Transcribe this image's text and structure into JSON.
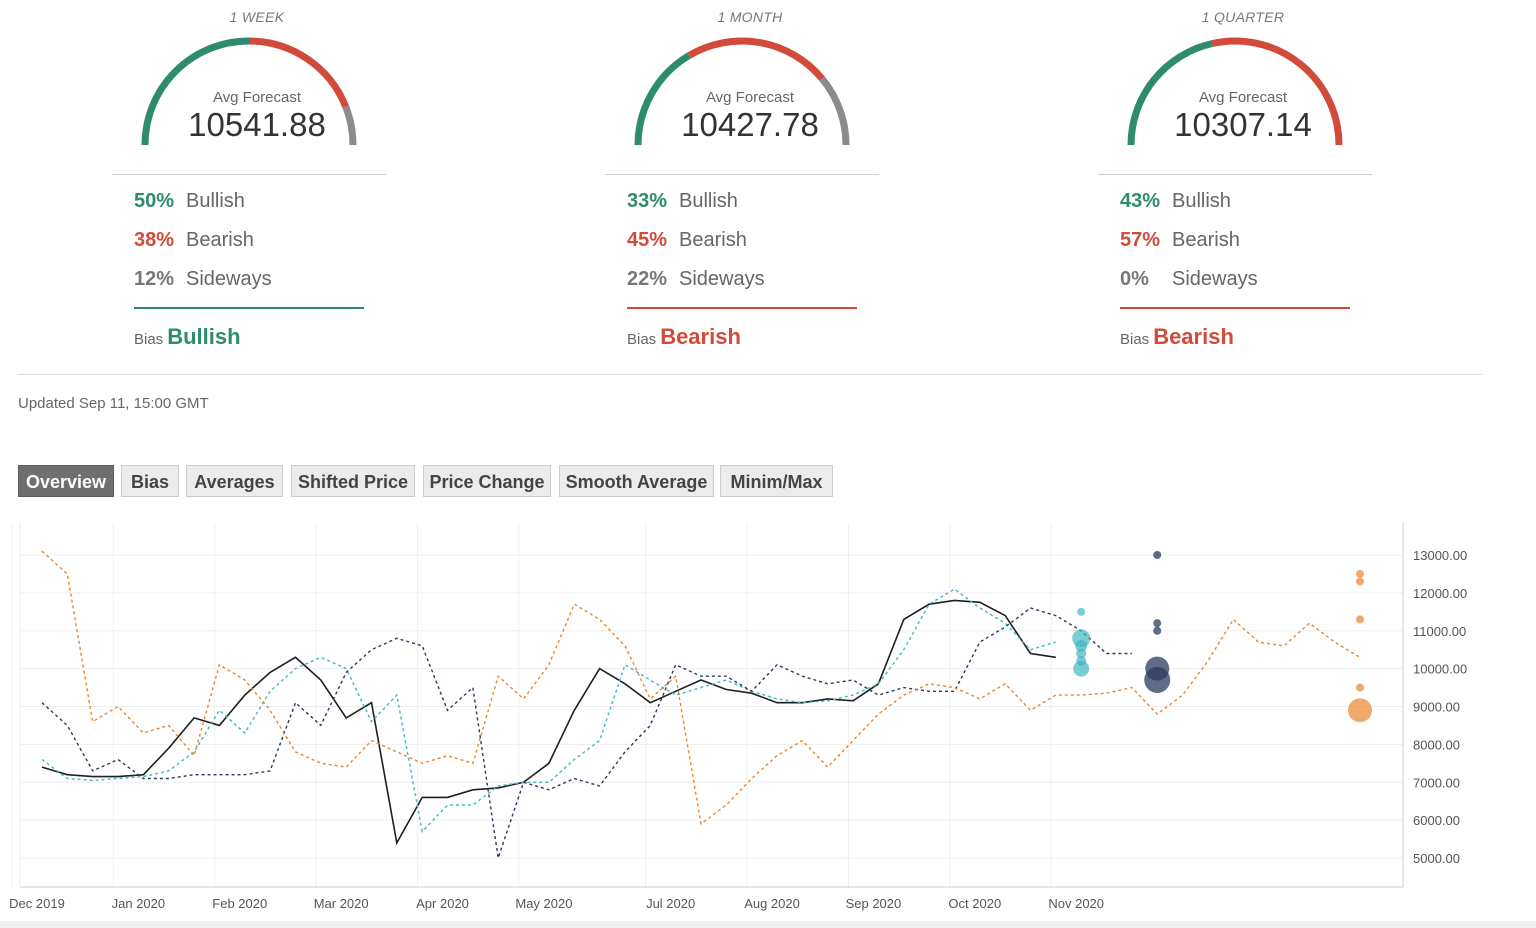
{
  "gauges": [
    {
      "period": "1 WEEK",
      "avg_label": "Avg Forecast",
      "avg_value": "10541.88",
      "bullish_pct": "50%",
      "bullish_label": "Bullish",
      "bearish_pct": "38%",
      "bearish_label": "Bearish",
      "sideways_pct": "12%",
      "sideways_label": "Sideways",
      "bias_label": "Bias",
      "bias_value": "Bullish",
      "shares": [
        0.5,
        0.38,
        0.12
      ],
      "bias_color": "#2e8b6e"
    },
    {
      "period": "1 MONTH",
      "avg_label": "Avg Forecast",
      "avg_value": "10427.78",
      "bullish_pct": "33%",
      "bullish_label": "Bullish",
      "bearish_pct": "45%",
      "bearish_label": "Bearish",
      "sideways_pct": "22%",
      "sideways_label": "Sideways",
      "bias_label": "Bias",
      "bias_value": "Bearish",
      "shares": [
        0.33,
        0.45,
        0.22
      ],
      "bias_color": "#d24b3a"
    },
    {
      "period": "1 QUARTER",
      "avg_label": "Avg Forecast",
      "avg_value": "10307.14",
      "bullish_pct": "43%",
      "bullish_label": "Bullish",
      "bearish_pct": "57%",
      "bearish_label": "Bearish",
      "sideways_pct": "0%",
      "sideways_label": "Sideways",
      "bias_label": "Bias",
      "bias_value": "Bearish",
      "shares": [
        0.43,
        0.57,
        0.0
      ],
      "bias_color": "#d24b3a"
    }
  ],
  "colors": {
    "bullish": "#2e8b6e",
    "bearish": "#d24b3a",
    "sideways": "#8a8a8f",
    "price": "#1f1f1f",
    "week": "#40b8c2",
    "month": "#2b3a5e",
    "quarter": "#e8862e"
  },
  "updated": "Updated Sep 11, 15:00 GMT",
  "tabs": [
    {
      "label": "Overview",
      "active": true
    },
    {
      "label": "Bias",
      "active": false
    },
    {
      "label": "Averages",
      "active": false
    },
    {
      "label": "Shifted Price",
      "active": false
    },
    {
      "label": "Price Change",
      "active": false
    },
    {
      "label": "Smooth Average",
      "active": false
    },
    {
      "label": "Minim/Max",
      "active": false
    }
  ],
  "chart_data": {
    "type": "line",
    "x_tick_labels": [
      "Dec 2019",
      "Jan 2020",
      "Feb 2020",
      "Mar 2020",
      "Apr 2020",
      "May 2020",
      "Jul 2020",
      "Aug 2020",
      "Sep 2020",
      "Oct 2020",
      "Nov 2020"
    ],
    "x_tick_weeks": [
      1,
      5,
      9,
      13,
      17,
      21,
      26,
      30,
      34,
      38,
      42
    ],
    "y_tick_labels": [
      "13000.00",
      "12000.00",
      "11000.00",
      "10000.00",
      "9000.00",
      "8000.00",
      "7000.00",
      "6000.00",
      "5000.00"
    ],
    "ylim": [
      4500,
      13300
    ],
    "grid": true,
    "series": [
      {
        "key": "price",
        "style": "solid",
        "points": [
          [
            1,
            7400
          ],
          [
            2,
            7200
          ],
          [
            3,
            7150
          ],
          [
            4,
            7150
          ],
          [
            5,
            7200
          ],
          [
            6,
            7900
          ],
          [
            7,
            8700
          ],
          [
            8,
            8500
          ],
          [
            9,
            9300
          ],
          [
            10,
            9900
          ],
          [
            11,
            10300
          ],
          [
            12,
            9700
          ],
          [
            13,
            8700
          ],
          [
            14,
            9100
          ],
          [
            15,
            5400
          ],
          [
            16,
            6600
          ],
          [
            17,
            6600
          ],
          [
            18,
            6800
          ],
          [
            19,
            6850
          ],
          [
            20,
            7000
          ],
          [
            21,
            7500
          ],
          [
            22,
            8900
          ],
          [
            23,
            10000
          ],
          [
            24,
            9600
          ],
          [
            25,
            9100
          ],
          [
            26,
            9400
          ],
          [
            27,
            9700
          ],
          [
            28,
            9450
          ],
          [
            29,
            9350
          ],
          [
            30,
            9100
          ],
          [
            31,
            9100
          ],
          [
            32,
            9200
          ],
          [
            33,
            9150
          ],
          [
            34,
            9600
          ],
          [
            35,
            11300
          ],
          [
            36,
            11700
          ],
          [
            37,
            11800
          ],
          [
            38,
            11750
          ],
          [
            39,
            11400
          ],
          [
            40,
            10400
          ],
          [
            41,
            10300
          ]
        ]
      },
      {
        "key": "week",
        "style": "dashed",
        "points": [
          [
            1,
            7600
          ],
          [
            2,
            7100
          ],
          [
            3,
            7050
          ],
          [
            4,
            7100
          ],
          [
            5,
            7150
          ],
          [
            6,
            7300
          ],
          [
            7,
            7800
          ],
          [
            8,
            8900
          ],
          [
            9,
            8300
          ],
          [
            10,
            9400
          ],
          [
            11,
            10000
          ],
          [
            12,
            10300
          ],
          [
            13,
            10000
          ],
          [
            14,
            8600
          ],
          [
            15,
            9300
          ],
          [
            16,
            5700
          ],
          [
            17,
            6400
          ],
          [
            18,
            6400
          ],
          [
            19,
            6900
          ],
          [
            20,
            7000
          ],
          [
            21,
            7000
          ],
          [
            22,
            7600
          ],
          [
            23,
            8100
          ],
          [
            24,
            10100
          ],
          [
            25,
            9700
          ],
          [
            26,
            9300
          ],
          [
            27,
            9500
          ],
          [
            28,
            9700
          ],
          [
            29,
            9400
          ],
          [
            30,
            9200
          ],
          [
            31,
            9100
          ],
          [
            32,
            9150
          ],
          [
            33,
            9300
          ],
          [
            34,
            9600
          ],
          [
            35,
            10500
          ],
          [
            36,
            11700
          ],
          [
            37,
            12100
          ],
          [
            38,
            11600
          ],
          [
            39,
            11200
          ],
          [
            40,
            10500
          ],
          [
            41,
            10700
          ]
        ]
      },
      {
        "key": "month",
        "style": "dashed",
        "points": [
          [
            1,
            9100
          ],
          [
            2,
            8500
          ],
          [
            3,
            7300
          ],
          [
            4,
            7600
          ],
          [
            5,
            7100
          ],
          [
            6,
            7100
          ],
          [
            7,
            7200
          ],
          [
            8,
            7200
          ],
          [
            9,
            7200
          ],
          [
            10,
            7300
          ],
          [
            11,
            9100
          ],
          [
            12,
            8500
          ],
          [
            13,
            9900
          ],
          [
            14,
            10500
          ],
          [
            15,
            10800
          ],
          [
            16,
            10600
          ],
          [
            17,
            8900
          ],
          [
            18,
            9500
          ],
          [
            19,
            5000
          ],
          [
            20,
            7000
          ],
          [
            21,
            6800
          ],
          [
            22,
            7100
          ],
          [
            23,
            6900
          ],
          [
            24,
            7800
          ],
          [
            25,
            8500
          ],
          [
            26,
            10100
          ],
          [
            27,
            9800
          ],
          [
            28,
            9800
          ],
          [
            29,
            9400
          ],
          [
            30,
            10100
          ],
          [
            31,
            9800
          ],
          [
            32,
            9600
          ],
          [
            33,
            9700
          ],
          [
            34,
            9300
          ],
          [
            35,
            9500
          ],
          [
            36,
            9400
          ],
          [
            37,
            9400
          ],
          [
            38,
            10700
          ],
          [
            39,
            11100
          ],
          [
            40,
            11600
          ],
          [
            41,
            11400
          ],
          [
            42,
            11000
          ],
          [
            43,
            10400
          ],
          [
            44,
            10400
          ]
        ]
      },
      {
        "key": "quarter",
        "style": "dashed",
        "points": [
          [
            1,
            13100
          ],
          [
            2,
            12500
          ],
          [
            3,
            8600
          ],
          [
            4,
            9000
          ],
          [
            5,
            8300
          ],
          [
            6,
            8500
          ],
          [
            7,
            7700
          ],
          [
            8,
            10100
          ],
          [
            9,
            9700
          ],
          [
            10,
            8900
          ],
          [
            11,
            7800
          ],
          [
            12,
            7500
          ],
          [
            13,
            7400
          ],
          [
            14,
            8100
          ],
          [
            15,
            7800
          ],
          [
            16,
            7500
          ],
          [
            17,
            7700
          ],
          [
            18,
            7500
          ],
          [
            19,
            9800
          ],
          [
            20,
            9200
          ],
          [
            21,
            10100
          ],
          [
            22,
            11700
          ],
          [
            23,
            11300
          ],
          [
            24,
            10600
          ],
          [
            25,
            9200
          ],
          [
            26,
            9800
          ],
          [
            27,
            5900
          ],
          [
            28,
            6400
          ],
          [
            29,
            7100
          ],
          [
            30,
            7700
          ],
          [
            31,
            8100
          ],
          [
            32,
            7400
          ],
          [
            33,
            8100
          ],
          [
            34,
            8800
          ],
          [
            35,
            9300
          ],
          [
            36,
            9600
          ],
          [
            37,
            9500
          ],
          [
            38,
            9200
          ],
          [
            39,
            9600
          ],
          [
            40,
            8900
          ],
          [
            41,
            9300
          ],
          [
            42,
            9300
          ],
          [
            43,
            9350
          ],
          [
            44,
            9500
          ],
          [
            45,
            8800
          ],
          [
            46,
            9300
          ],
          [
            47,
            10200
          ],
          [
            48,
            11300
          ],
          [
            49,
            10700
          ],
          [
            50,
            10600
          ],
          [
            51,
            11200
          ],
          [
            52,
            10700
          ],
          [
            53,
            10300
          ]
        ]
      }
    ],
    "forecast_dots": [
      {
        "key": "week",
        "week": 42,
        "values": [
          11500,
          10800,
          10600,
          10400,
          10200,
          10000
        ],
        "sizes": [
          4,
          9,
          6,
          5,
          5,
          8
        ]
      },
      {
        "key": "month",
        "week": 45,
        "values": [
          13000,
          11200,
          11000,
          10000,
          9700
        ],
        "sizes": [
          4,
          4,
          4,
          12,
          13
        ]
      },
      {
        "key": "quarter",
        "week": 53,
        "values": [
          12500,
          12300,
          11300,
          9500,
          8900
        ],
        "sizes": [
          4,
          4,
          4,
          4,
          12
        ]
      }
    ]
  }
}
